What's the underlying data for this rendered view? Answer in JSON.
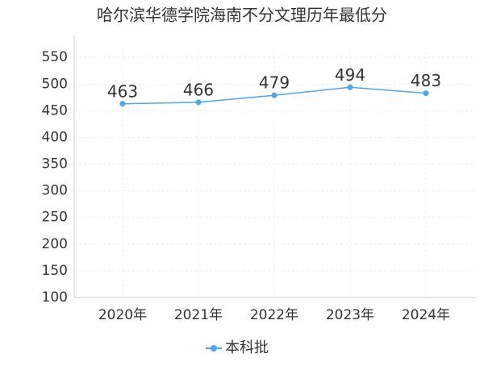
{
  "chart_data": {
    "type": "line",
    "title": "哈尔滨华德学院海南不分文理历年最低分",
    "categories": [
      "2020年",
      "2021年",
      "2022年",
      "2023年",
      "2024年"
    ],
    "series": [
      {
        "name": "本科批",
        "color": "#4ea6f2",
        "values": [
          463,
          466,
          479,
          494,
          483
        ]
      }
    ],
    "ylim": [
      100,
      570
    ],
    "yticks": [
      100,
      150,
      200,
      250,
      300,
      350,
      400,
      450,
      500,
      550
    ],
    "grid": true,
    "legend": "bottom"
  }
}
